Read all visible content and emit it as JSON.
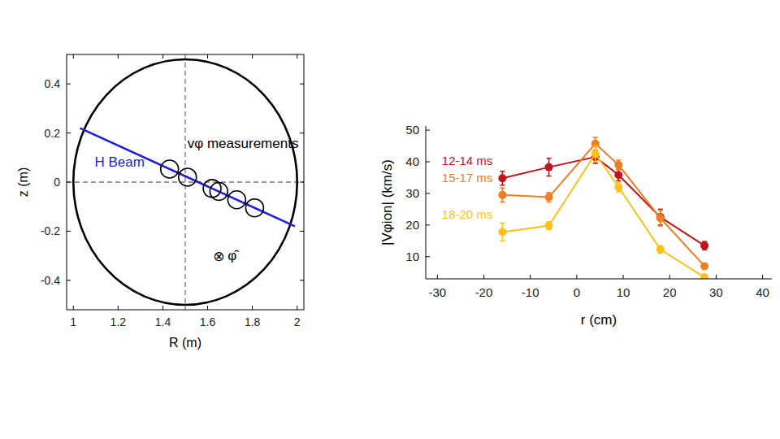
{
  "chart_data": [
    {
      "type": "scatter",
      "x_label": "R (m)",
      "y_label": "z (m)",
      "xlim": [
        0.97,
        2.03
      ],
      "ylim": [
        -0.52,
        0.52
      ],
      "xticks": [
        1,
        1.2,
        1.4,
        1.6,
        1.8,
        2
      ],
      "yticks": [
        -0.4,
        -0.2,
        0,
        0.2,
        0.4
      ],
      "grid": false,
      "vessel": {
        "center_x": 1.5,
        "center_z": 0,
        "radius": 0.5
      },
      "reference_lines": [
        {
          "axis": "x",
          "value": 1.5
        },
        {
          "axis": "y",
          "value": 0
        }
      ],
      "series": [
        {
          "name": "H Beam",
          "type": "line",
          "color": "#1f1fd6",
          "x": [
            1.03,
            1.99
          ],
          "values": [
            0.22,
            -0.18
          ]
        },
        {
          "name": "vφ measurements",
          "type": "scatter",
          "marker": "circle",
          "color": "#000000",
          "x": [
            1.43,
            1.51,
            1.62,
            1.65,
            1.73,
            1.81
          ],
          "values": [
            0.053,
            0.02,
            -0.026,
            -0.038,
            -0.072,
            -0.105
          ]
        }
      ],
      "annotations": [
        {
          "text": "φ̂",
          "symbol": "⊗",
          "x": 1.65,
          "y": -0.3
        }
      ]
    },
    {
      "type": "line",
      "x_label": "r (cm)",
      "y_label": "|Vφion| (km/s)",
      "xlim": [
        -32.5,
        42
      ],
      "ylim": [
        3,
        51.3
      ],
      "xticks": [
        -30,
        -20,
        -10,
        0,
        10,
        20,
        30,
        40
      ],
      "yticks": [
        10,
        20,
        30,
        40,
        50
      ],
      "grid": false,
      "marker": "circle",
      "x": [
        -16,
        -6,
        4,
        9,
        18,
        27.5
      ],
      "series": [
        {
          "name": "12-14 ms",
          "color": "#c0141e",
          "values": [
            34.8,
            38.3,
            41.5,
            35.8,
            22.5,
            13.5
          ],
          "errors": [
            2.2,
            2.8,
            2.0,
            1.8,
            2.5,
            1.3
          ]
        },
        {
          "name": "15-17 ms",
          "color": "#ef7d22",
          "values": [
            29.5,
            28.8,
            45.7,
            39.0,
            22.2,
            7.0
          ],
          "errors": [
            2.2,
            1.5,
            2.0,
            1.5,
            2.5,
            0.8
          ]
        },
        {
          "name": "18-20 ms",
          "color": "#fcc21b",
          "values": [
            17.8,
            19.8,
            42.5,
            32.0,
            12.3,
            3.5
          ],
          "errors": [
            2.8,
            1.2,
            2.5,
            1.5,
            1.2,
            0.7
          ]
        }
      ]
    }
  ]
}
